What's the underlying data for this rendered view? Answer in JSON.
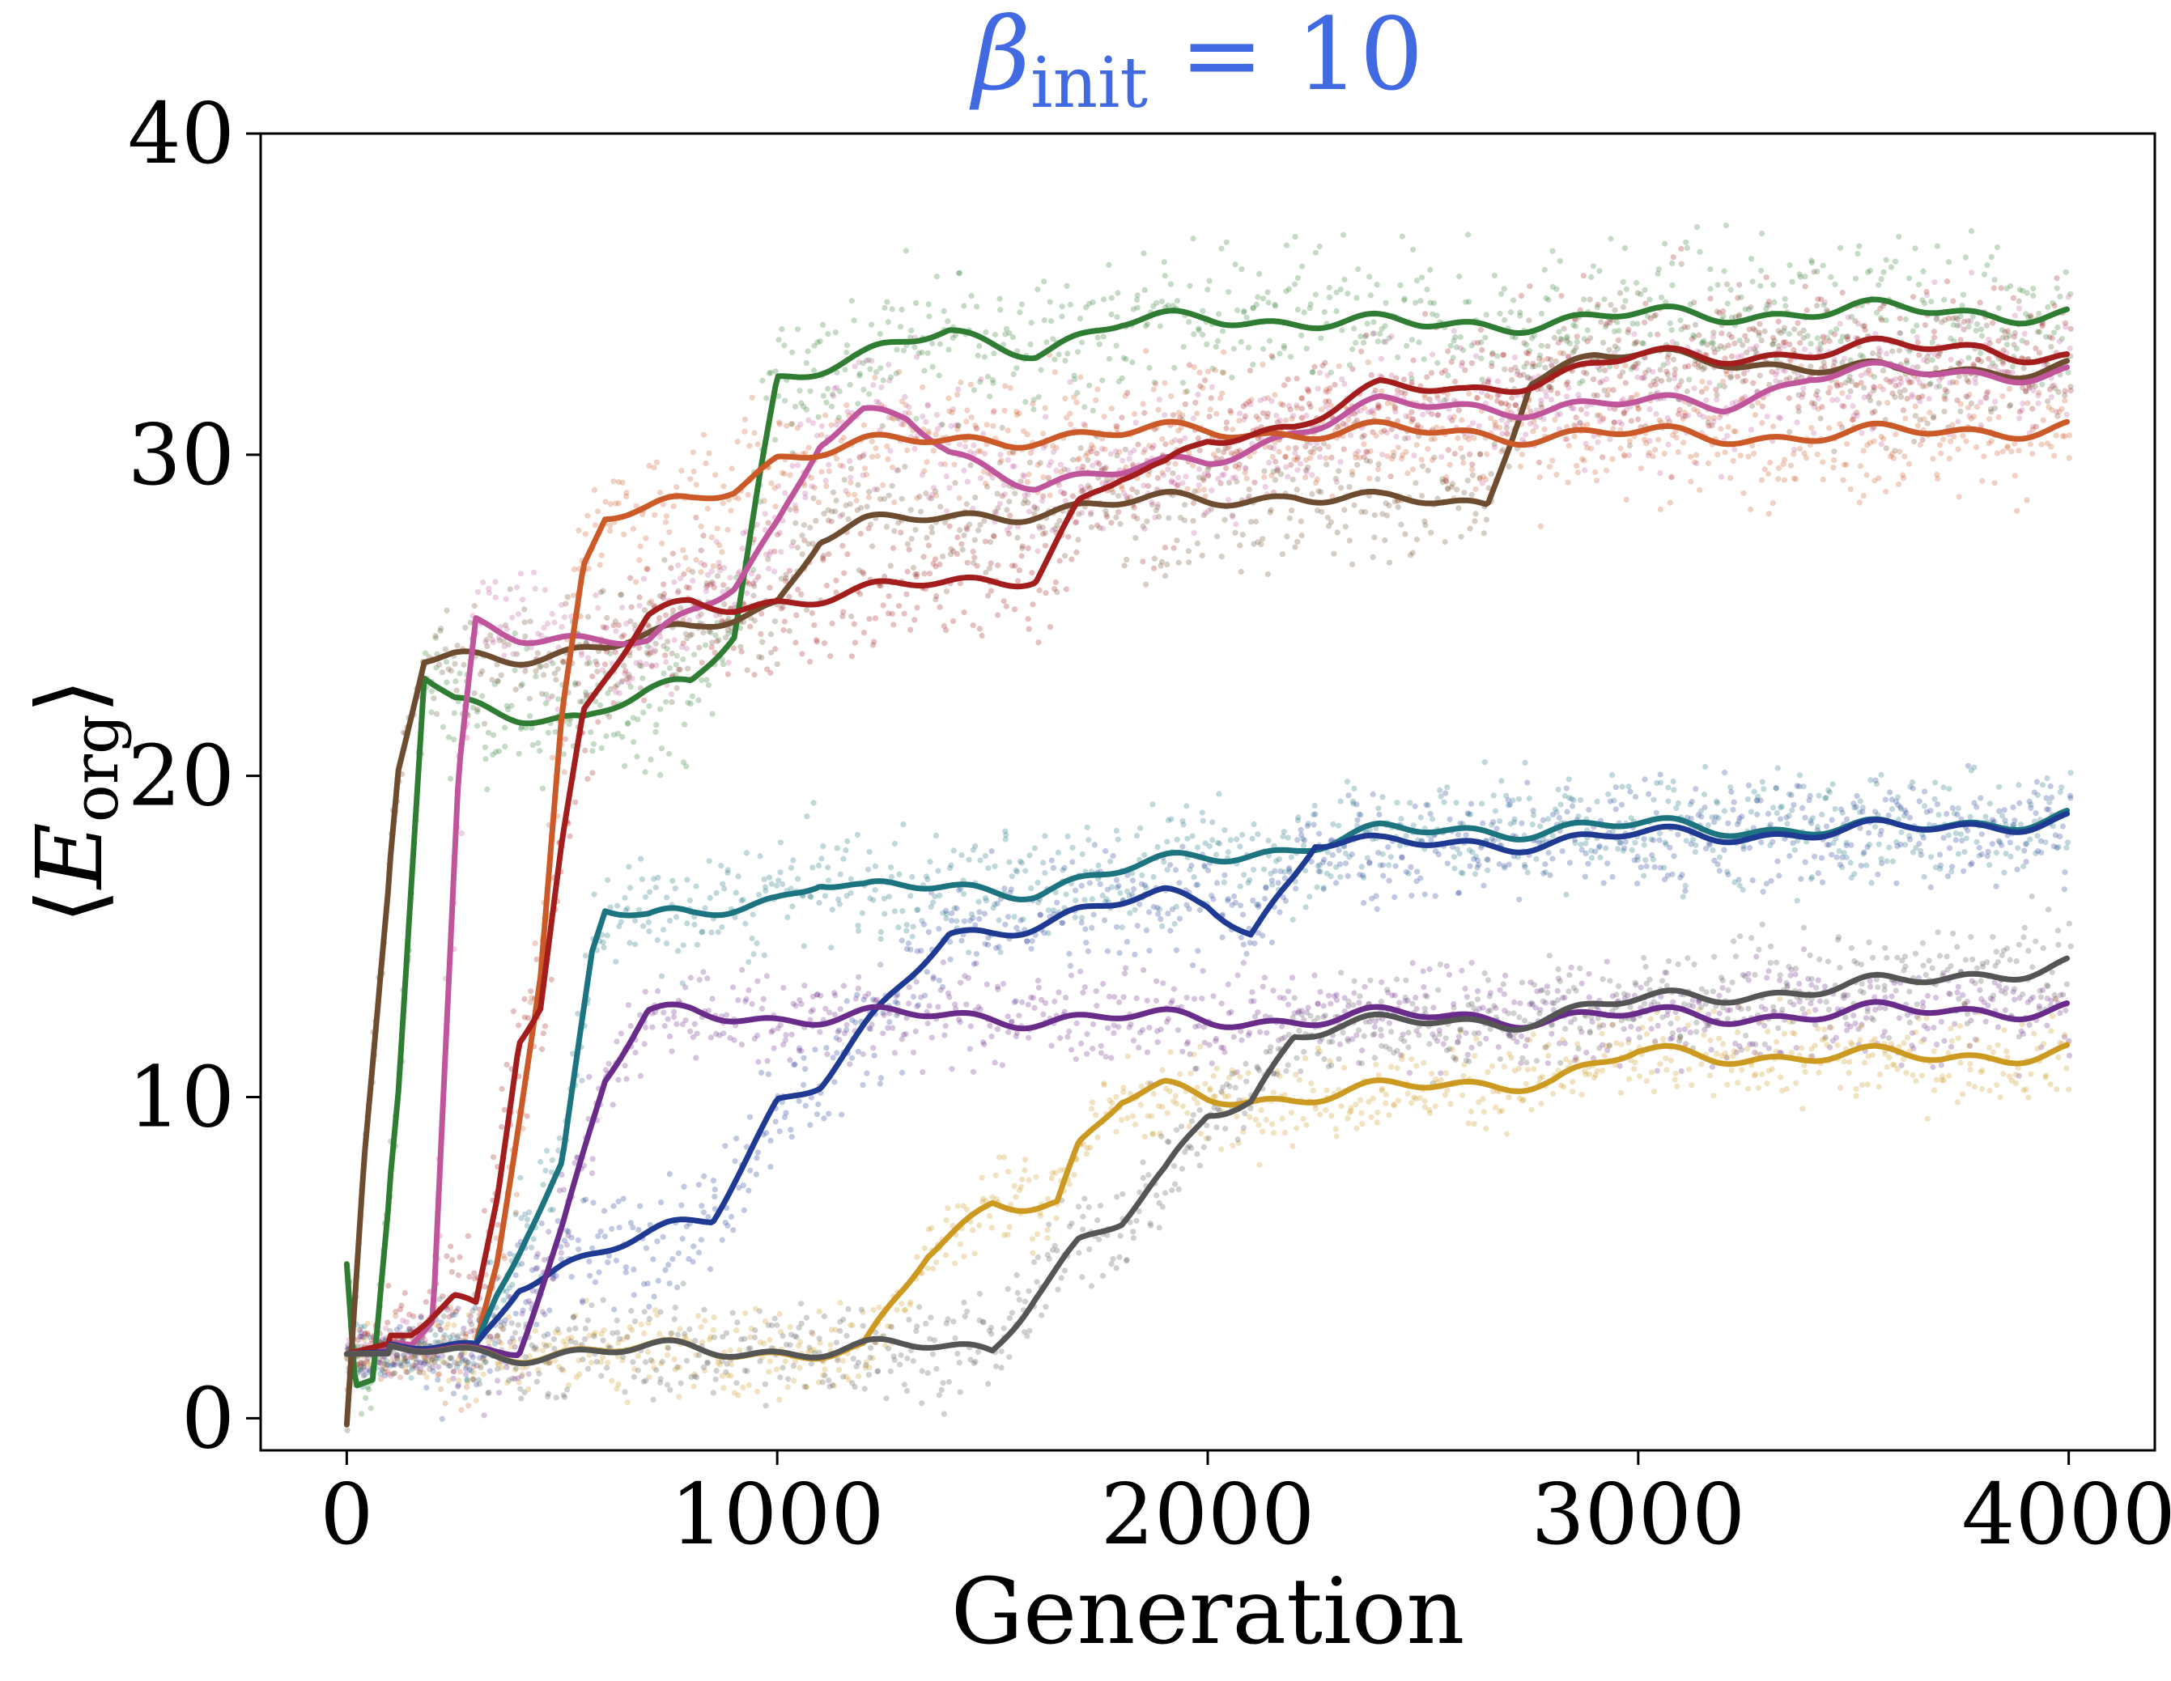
{
  "chart_data": {
    "type": "scatter",
    "title": {
      "symbol": "β",
      "subscript": "init",
      "rest": " = 10"
    },
    "xlabel": "Generation",
    "ylabel": {
      "open": "⟨",
      "symbol": "E",
      "subscript": "org",
      "close": "⟩"
    },
    "xlim": [
      -200,
      4200
    ],
    "ylim": [
      -1,
      40
    ],
    "xticks": [
      0,
      1000,
      2000,
      3000,
      4000
    ],
    "yticks": [
      0,
      10,
      20,
      30,
      40
    ],
    "xtick_labels": [
      "0",
      "1000",
      "2000",
      "3000",
      "4000"
    ],
    "ytick_labels": [
      "0",
      "10",
      "20",
      "30",
      "40"
    ],
    "grid": false,
    "legend": "none",
    "series": [
      {
        "color": "#2e7d32",
        "noise": 1.6,
        "x": [
          0,
          20,
          60,
          120,
          180,
          250,
          400,
          550,
          700,
          800,
          900,
          960,
          1000,
          1050,
          1200,
          1400,
          1600,
          1800,
          2000,
          2500,
          3000,
          3500,
          4000
        ],
        "y": [
          4.8,
          1.0,
          1.2,
          10,
          23,
          22.3,
          22.0,
          21.8,
          22.5,
          22.8,
          24.5,
          29.5,
          32.5,
          32.6,
          33.0,
          33.8,
          33.3,
          34.0,
          34.3,
          34.0,
          34.3,
          34.5,
          34.4
        ]
      },
      {
        "color": "#6d4c2f",
        "noise": 1.5,
        "x": [
          0,
          40,
          120,
          180,
          250,
          400,
          600,
          800,
          900,
          1000,
          1100,
          1200,
          1400,
          1600,
          2000,
          2200,
          2400,
          2650,
          2750,
          2900,
          3200,
          3600,
          4000
        ],
        "y": [
          -0.2,
          8,
          20,
          23.5,
          23.7,
          23.8,
          24.0,
          24.5,
          25.0,
          25.5,
          27.5,
          27.8,
          28.0,
          28.3,
          28.6,
          28.8,
          28.5,
          28.5,
          32.5,
          33.0,
          33.0,
          32.5,
          32.8
        ]
      },
      {
        "color": "#c0559b",
        "noise": 1.5,
        "x": [
          0,
          150,
          200,
          260,
          300,
          400,
          600,
          700,
          800,
          900,
          1000,
          1100,
          1200,
          1300,
          1400,
          1600,
          1800,
          2000,
          2200,
          2400,
          2800,
          3200,
          3400,
          4000
        ],
        "y": [
          2,
          2.2,
          3,
          20,
          24.8,
          24.5,
          24.2,
          24.0,
          25.0,
          26.0,
          28.0,
          30.5,
          31.2,
          31.0,
          30.0,
          29.2,
          29.4,
          29.8,
          30.8,
          31.5,
          31.5,
          31.6,
          32.5,
          32.6
        ]
      },
      {
        "color": "#cc5a28",
        "noise": 1.5,
        "x": [
          0,
          300,
          350,
          450,
          500,
          550,
          600,
          700,
          800,
          900,
          1000,
          1100,
          1200,
          1400,
          1600,
          1800,
          2000,
          2200,
          2500,
          3000,
          3500,
          4000
        ],
        "y": [
          2,
          2.2,
          5,
          14,
          22,
          26.5,
          28.0,
          28.2,
          28.5,
          29.0,
          30.0,
          30.2,
          30.3,
          30.4,
          30.6,
          30.6,
          30.8,
          30.7,
          30.7,
          30.6,
          30.6,
          30.9
        ]
      },
      {
        "color": "#a31d1d",
        "noise": 1.7,
        "x": [
          0,
          150,
          250,
          300,
          350,
          400,
          450,
          500,
          550,
          600,
          700,
          800,
          900,
          1000,
          1200,
          1400,
          1600,
          1700,
          1800,
          1900,
          2000,
          2200,
          2400,
          2600,
          2800,
          3000,
          3400,
          3800,
          4000
        ],
        "y": [
          2,
          2.5,
          3.7,
          3.5,
          7,
          12,
          13,
          18,
          22,
          23,
          24.8,
          25.3,
          25.3,
          25.5,
          25.7,
          26.0,
          26.3,
          28.5,
          29.2,
          29.5,
          30.5,
          31.0,
          32.0,
          32.0,
          32.5,
          33.0,
          33.2,
          33.4,
          33.0
        ]
      },
      {
        "color": "#1b7480",
        "noise": 1.3,
        "x": [
          0,
          300,
          350,
          420,
          500,
          570,
          600,
          700,
          800,
          1000,
          1100,
          1200,
          1400,
          1600,
          1800,
          2000,
          2200,
          2400,
          2800,
          3200,
          3600,
          4000
        ],
        "y": [
          2,
          2.2,
          4.0,
          6.0,
          8.0,
          14.5,
          15.8,
          15.5,
          15.6,
          16.3,
          16.8,
          16.4,
          16.5,
          16.5,
          17.0,
          17.5,
          17.8,
          18.2,
          18.4,
          18.4,
          18.3,
          18.8
        ]
      },
      {
        "color": "#1f3a93",
        "noise": 1.3,
        "x": [
          0,
          300,
          400,
          500,
          600,
          700,
          800,
          850,
          900,
          1000,
          1100,
          1200,
          1300,
          1400,
          1500,
          1700,
          1900,
          2000,
          2100,
          2200,
          2250,
          2400,
          2800,
          3200,
          3600,
          4000
        ],
        "y": [
          2,
          2.2,
          4.3,
          4.8,
          5.2,
          5.6,
          6.0,
          6.2,
          7.5,
          10.0,
          10.5,
          12.0,
          13.5,
          15.0,
          15.2,
          15.8,
          16.2,
          16.0,
          15.2,
          17.0,
          18.0,
          17.8,
          18.0,
          18.2,
          18.3,
          18.7
        ]
      },
      {
        "color": "#6a2c8a",
        "noise": 1.1,
        "x": [
          0,
          300,
          400,
          500,
          600,
          700,
          800,
          1000,
          1500,
          2000,
          2500,
          3000,
          3500,
          4000
        ],
        "y": [
          2,
          2.1,
          2.3,
          6.0,
          10.5,
          12.5,
          12.6,
          12.5,
          12.5,
          12.4,
          12.5,
          12.5,
          12.6,
          12.8
        ]
      },
      {
        "color": "#cc9a20",
        "noise": 1.0,
        "x": [
          0,
          600,
          1200,
          1300,
          1350,
          1500,
          1650,
          1700,
          1800,
          1900,
          2000,
          2200,
          2500,
          2700,
          2800,
          3000,
          3400,
          3700,
          4000
        ],
        "y": [
          2,
          2.1,
          2.1,
          4.0,
          5.0,
          6.8,
          6.8,
          8.5,
          9.8,
          10.2,
          10.0,
          10.0,
          10.3,
          10.5,
          10.6,
          11.3,
          11.3,
          11.2,
          11.5
        ]
      },
      {
        "color": "#555555",
        "noise": 1.1,
        "x": [
          0,
          800,
          1500,
          1600,
          1700,
          1800,
          1900,
          2000,
          2100,
          2200,
          2300,
          2500,
          2700,
          2900,
          3200,
          3600,
          4000
        ],
        "y": [
          2,
          2.1,
          2.2,
          4.0,
          5.5,
          6.0,
          7.5,
          9.5,
          10.0,
          12.0,
          12.2,
          12.3,
          12.4,
          12.8,
          13.2,
          13.5,
          14.2
        ]
      }
    ]
  }
}
